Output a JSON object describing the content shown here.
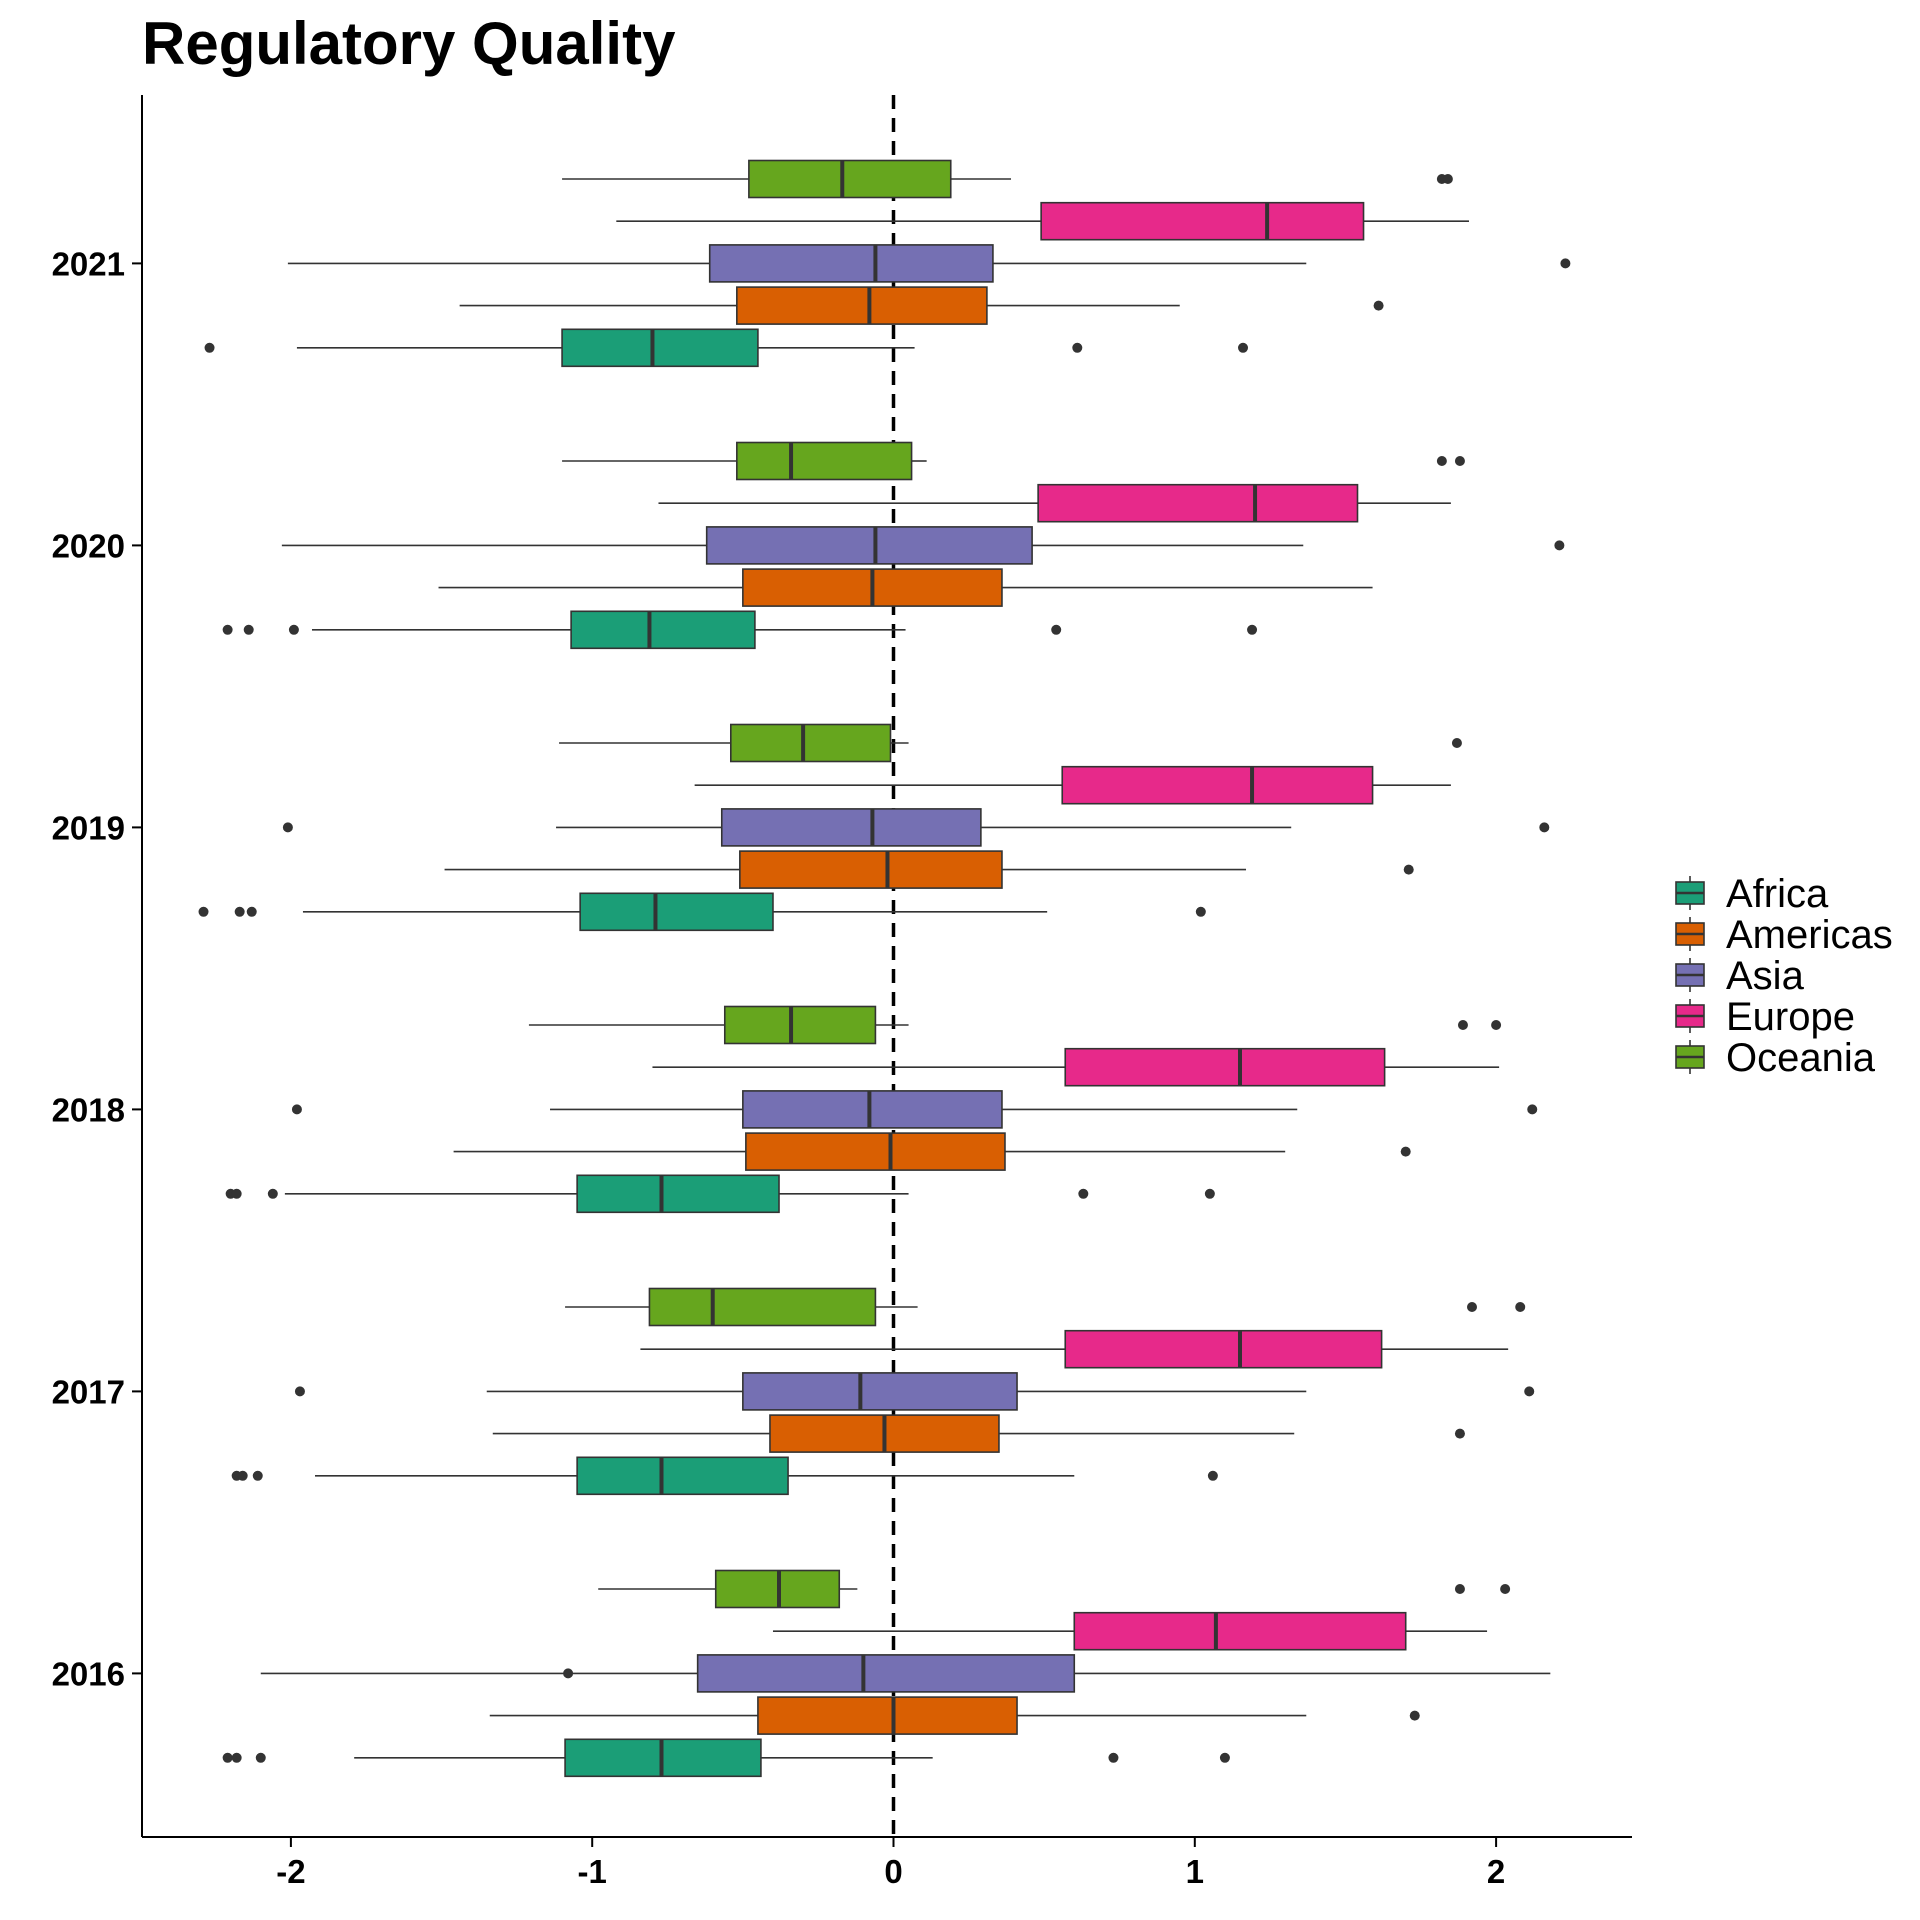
{
  "chart_data": {
    "type": "boxplot",
    "orientation": "horizontal",
    "title": "Regulatory Quality",
    "xlabel": "",
    "ylabel": "",
    "xlim": [
      -2.5,
      2.45
    ],
    "x_ticks": [
      -2,
      -1,
      0,
      1,
      2
    ],
    "x_tick_labels": [
      "-2",
      "-1",
      "0",
      "1",
      "2"
    ],
    "categories": [
      "2021",
      "2020",
      "2019",
      "2018",
      "2017",
      "2016"
    ],
    "reference_line": {
      "x": 0,
      "style": "dashed"
    },
    "legend": {
      "position": "right",
      "entries": [
        "Africa",
        "Americas",
        "Asia",
        "Europe",
        "Oceania"
      ]
    },
    "series": [
      {
        "name": "Africa",
        "color": "#1b9e77",
        "boxes": [
          {
            "year": "2021",
            "lo": -1.98,
            "q1": -1.1,
            "med": -0.8,
            "q3": -0.45,
            "hi": 0.07,
            "outliers": [
              -2.27,
              0.61,
              1.16
            ]
          },
          {
            "year": "2020",
            "lo": -1.93,
            "q1": -1.07,
            "med": -0.81,
            "q3": -0.46,
            "hi": 0.04,
            "outliers": [
              -2.21,
              -2.14,
              -1.99,
              0.54,
              1.19
            ]
          },
          {
            "year": "2019",
            "lo": -1.96,
            "q1": -1.04,
            "med": -0.79,
            "q3": -0.4,
            "hi": 0.51,
            "outliers": [
              -2.29,
              -2.17,
              -2.13,
              1.02
            ]
          },
          {
            "year": "2018",
            "lo": -2.02,
            "q1": -1.05,
            "med": -0.77,
            "q3": -0.38,
            "hi": 0.05,
            "outliers": [
              -2.2,
              -2.18,
              -2.06,
              0.63,
              1.05
            ]
          },
          {
            "year": "2017",
            "lo": -1.92,
            "q1": -1.05,
            "med": -0.77,
            "q3": -0.35,
            "hi": 0.6,
            "outliers": [
              -2.18,
              -2.16,
              -2.11,
              1.06
            ]
          },
          {
            "year": "2016",
            "lo": -1.79,
            "q1": -1.09,
            "med": -0.77,
            "q3": -0.44,
            "hi": 0.13,
            "outliers": [
              -2.21,
              -2.18,
              -2.1,
              0.73,
              1.1
            ]
          }
        ]
      },
      {
        "name": "Americas",
        "color": "#d95f02",
        "boxes": [
          {
            "year": "2021",
            "lo": -1.44,
            "q1": -0.52,
            "med": -0.08,
            "q3": 0.31,
            "hi": 0.95,
            "outliers": [
              1.61
            ]
          },
          {
            "year": "2020",
            "lo": -1.51,
            "q1": -0.5,
            "med": -0.07,
            "q3": 0.36,
            "hi": 1.59,
            "outliers": []
          },
          {
            "year": "2019",
            "lo": -1.49,
            "q1": -0.51,
            "med": -0.02,
            "q3": 0.36,
            "hi": 1.17,
            "outliers": [
              1.71
            ]
          },
          {
            "year": "2018",
            "lo": -1.46,
            "q1": -0.49,
            "med": -0.01,
            "q3": 0.37,
            "hi": 1.3,
            "outliers": [
              1.7
            ]
          },
          {
            "year": "2017",
            "lo": -1.33,
            "q1": -0.41,
            "med": -0.03,
            "q3": 0.35,
            "hi": 1.33,
            "outliers": [
              1.88
            ]
          },
          {
            "year": "2016",
            "lo": -1.34,
            "q1": -0.45,
            "med": 0.0,
            "q3": 0.41,
            "hi": 1.37,
            "outliers": [
              1.73
            ]
          }
        ]
      },
      {
        "name": "Asia",
        "color": "#7570b3",
        "boxes": [
          {
            "year": "2021",
            "lo": -2.01,
            "q1": -0.61,
            "med": -0.06,
            "q3": 0.33,
            "hi": 1.37,
            "outliers": [
              2.23
            ]
          },
          {
            "year": "2020",
            "lo": -2.03,
            "q1": -0.62,
            "med": -0.06,
            "q3": 0.46,
            "hi": 1.36,
            "outliers": [
              2.21
            ]
          },
          {
            "year": "2019",
            "lo": -1.12,
            "q1": -0.57,
            "med": -0.07,
            "q3": 0.29,
            "hi": 1.32,
            "outliers": [
              -2.01,
              2.16
            ]
          },
          {
            "year": "2018",
            "lo": -1.14,
            "q1": -0.5,
            "med": -0.08,
            "q3": 0.36,
            "hi": 1.34,
            "outliers": [
              -1.98,
              2.12
            ]
          },
          {
            "year": "2017",
            "lo": -1.35,
            "q1": -0.5,
            "med": -0.11,
            "q3": 0.41,
            "hi": 1.37,
            "outliers": [
              -1.97,
              2.11
            ]
          },
          {
            "year": "2016",
            "lo": -2.1,
            "q1": -0.65,
            "med": -0.1,
            "q3": 0.6,
            "hi": 2.18,
            "outliers": [
              -1.08
            ]
          }
        ]
      },
      {
        "name": "Europe",
        "color": "#e7298a",
        "boxes": [
          {
            "year": "2021",
            "lo": -0.92,
            "q1": 0.49,
            "med": 1.24,
            "q3": 1.56,
            "hi": 1.91,
            "outliers": []
          },
          {
            "year": "2020",
            "lo": -0.78,
            "q1": 0.48,
            "med": 1.2,
            "q3": 1.54,
            "hi": 1.85,
            "outliers": []
          },
          {
            "year": "2019",
            "lo": -0.66,
            "q1": 0.56,
            "med": 1.19,
            "q3": 1.59,
            "hi": 1.85,
            "outliers": []
          },
          {
            "year": "2018",
            "lo": -0.8,
            "q1": 0.57,
            "med": 1.15,
            "q3": 1.63,
            "hi": 2.01,
            "outliers": []
          },
          {
            "year": "2017",
            "lo": -0.84,
            "q1": 0.57,
            "med": 1.15,
            "q3": 1.62,
            "hi": 2.04,
            "outliers": []
          },
          {
            "year": "2016",
            "lo": -0.4,
            "q1": 0.6,
            "med": 1.07,
            "q3": 1.7,
            "hi": 1.97,
            "outliers": []
          }
        ]
      },
      {
        "name": "Oceania",
        "color": "#66a61e",
        "boxes": [
          {
            "year": "2021",
            "lo": -1.1,
            "q1": -0.48,
            "med": -0.17,
            "q3": 0.19,
            "hi": 0.39,
            "outliers": [
              1.82,
              1.84
            ]
          },
          {
            "year": "2020",
            "lo": -1.1,
            "q1": -0.52,
            "med": -0.34,
            "q3": 0.06,
            "hi": 0.11,
            "outliers": [
              1.82,
              1.88
            ]
          },
          {
            "year": "2019",
            "lo": -1.11,
            "q1": -0.54,
            "med": -0.3,
            "q3": -0.01,
            "hi": 0.05,
            "outliers": [
              1.87
            ]
          },
          {
            "year": "2018",
            "lo": -1.21,
            "q1": -0.56,
            "med": -0.34,
            "q3": -0.06,
            "hi": 0.05,
            "outliers": [
              1.89,
              2.0
            ]
          },
          {
            "year": "2017",
            "lo": -1.09,
            "q1": -0.81,
            "med": -0.6,
            "q3": -0.06,
            "hi": 0.08,
            "outliers": [
              1.92,
              2.08
            ]
          },
          {
            "year": "2016",
            "lo": -0.98,
            "q1": -0.59,
            "med": -0.38,
            "q3": -0.18,
            "hi": -0.12,
            "outliers": [
              1.88,
              2.03
            ]
          }
        ]
      }
    ]
  }
}
